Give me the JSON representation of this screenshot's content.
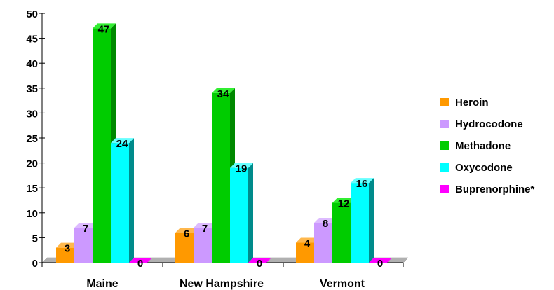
{
  "chart_data": {
    "type": "bar",
    "title": "",
    "xlabel": "",
    "ylabel": "",
    "ylim": [
      0,
      50
    ],
    "yticks": [
      0,
      5,
      10,
      15,
      20,
      25,
      30,
      35,
      40,
      45,
      50
    ],
    "categories": [
      "Maine",
      "New Hampshire",
      "Vermont"
    ],
    "series": [
      {
        "name": "Heroin",
        "values": [
          3,
          6,
          4
        ],
        "color": "#FF9900",
        "side_color": "#CC7A00",
        "top_color": "#FFB84D"
      },
      {
        "name": "Hydrocodone",
        "values": [
          7,
          7,
          8
        ],
        "color": "#CC99FF",
        "side_color": "#9966CC",
        "top_color": "#DDBBFF"
      },
      {
        "name": "Methadone",
        "values": [
          47,
          34,
          12
        ],
        "color": "#00CC00",
        "side_color": "#008800",
        "top_color": "#33EE33"
      },
      {
        "name": "Oxycodone",
        "values": [
          24,
          19,
          16
        ],
        "color": "#00FFFF",
        "side_color": "#008B8B",
        "top_color": "#66FFFF"
      },
      {
        "name": "Buprenorphine*",
        "values": [
          0,
          0,
          0
        ],
        "color": "#FF00FF",
        "side_color": "#AA00AA",
        "top_color": "#FF66FF"
      }
    ],
    "legend_position": "right",
    "grid": false,
    "view": "3d-bar"
  }
}
